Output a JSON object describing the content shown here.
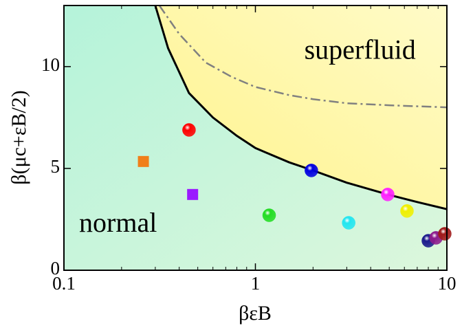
{
  "chart_data": {
    "type": "scatter",
    "xlabel": "βεB",
    "ylabel": "β(μc+εB/2)",
    "xlim": [
      0.1,
      10
    ],
    "ylim": [
      0,
      13
    ],
    "xscale": "log",
    "xticks": [
      0.1,
      1,
      10
    ],
    "yticks": [
      0,
      5,
      10
    ],
    "annotations": [
      {
        "text": "superfluid",
        "x": 1.8,
        "y": 10.7
      },
      {
        "text": "normal",
        "x": 0.12,
        "y": 2.2
      }
    ],
    "regions": {
      "normal_color": "#b5f3da",
      "superfluid_color": "#fff38a"
    },
    "curves": [
      {
        "style": "solid",
        "color": "#000000",
        "x": [
          0.3,
          0.35,
          0.45,
          0.6,
          0.8,
          1,
          1.5,
          2,
          3,
          5,
          7,
          10
        ],
        "values": [
          13,
          10.9,
          8.7,
          7.5,
          6.6,
          6.0,
          5.3,
          4.9,
          4.3,
          3.7,
          3.35,
          3.0
        ]
      },
      {
        "style": "dashdot",
        "color": "#808080",
        "x": [
          0.315,
          0.4,
          0.55,
          0.75,
          1,
          1.5,
          2,
          3,
          5,
          10
        ],
        "values": [
          13,
          11.6,
          10.2,
          9.5,
          9.0,
          8.6,
          8.4,
          8.2,
          8.1,
          8.0
        ]
      }
    ],
    "series": [
      {
        "marker": "circle",
        "colors": [
          "#ff0000",
          "#0000e0",
          "#22dd22",
          "#22e6f0",
          "#ff22ff",
          "#f0f000",
          "#1a1a8c",
          "#8c1a8c",
          "#a01a1a"
        ],
        "x": [
          0.45,
          1.96,
          1.18,
          3.07,
          4.91,
          6.19,
          8.0,
          8.77,
          9.75
        ],
        "values": [
          6.89,
          4.9,
          2.7,
          2.33,
          3.72,
          2.91,
          1.45,
          1.59,
          1.79
        ]
      },
      {
        "marker": "square",
        "colors": [
          "#f07f1a",
          "#9a1aff"
        ],
        "x": [
          0.26,
          0.47
        ],
        "values": [
          5.34,
          3.72
        ]
      }
    ]
  }
}
